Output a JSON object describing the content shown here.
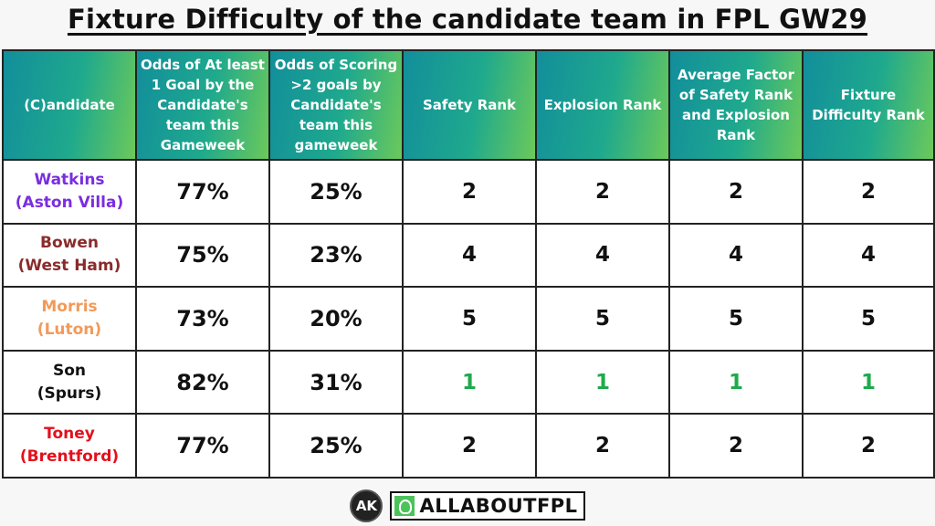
{
  "title": "Fixture Difficulty of the candidate team in FPL GW29",
  "columns": [
    "(C)andidate",
    "Odds of At least 1 Goal by the Candidate's team this Gameweek",
    "Odds of Scoring >2 goals by Candidate's team this gameweek",
    "Safety Rank",
    "Explosion Rank",
    "Average Factor of Safety Rank and Explosion Rank",
    "Fixture Difficulty Rank"
  ],
  "rows": [
    {
      "name": "Watkins",
      "team": "(Aston Villa)",
      "color": "#7a2ee0",
      "odds1": "77%",
      "odds2": "25%",
      "safety": "2",
      "explosion": "2",
      "average": "2",
      "difficulty": "2"
    },
    {
      "name": "Bowen",
      "team": "(West Ham)",
      "color": "#8a2b2b",
      "odds1": "75%",
      "odds2": "23%",
      "safety": "4",
      "explosion": "4",
      "average": "4",
      "difficulty": "4"
    },
    {
      "name": "Morris",
      "team": "(Luton)",
      "color": "#f29a59",
      "odds1": "73%",
      "odds2": "20%",
      "safety": "5",
      "explosion": "5",
      "average": "5",
      "difficulty": "5"
    },
    {
      "name": "Son",
      "team": "(Spurs)",
      "color": "#111111",
      "odds1": "82%",
      "odds2": "31%",
      "safety": "1",
      "explosion": "1",
      "average": "1",
      "difficulty": "1"
    },
    {
      "name": "Toney",
      "team": "(Brentford)",
      "color": "#e3101c",
      "odds1": "77%",
      "odds2": "25%",
      "safety": "2",
      "explosion": "2",
      "average": "2",
      "difficulty": "2"
    }
  ],
  "best_rank_color": "#1faa4d",
  "footer": {
    "logo_text": "AK",
    "brand": "ALLABOUTFPL"
  }
}
